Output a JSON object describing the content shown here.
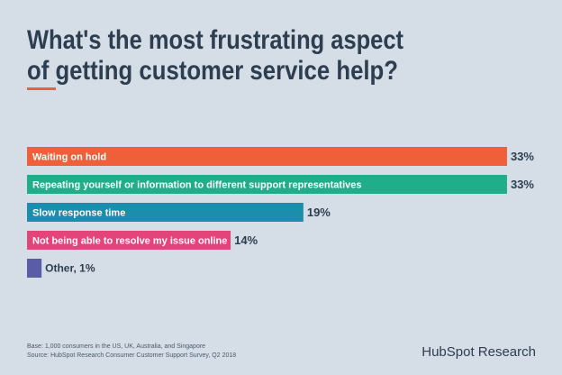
{
  "chart_data": {
    "type": "bar",
    "title_lines": [
      "What's the most frustrating aspect",
      "of getting customer service help?"
    ],
    "categories": [
      "Waiting on hold",
      "Repeating yourself or information to different support representatives",
      "Slow response time",
      "Not being able to resolve my issue online",
      "Other, 1%"
    ],
    "values": [
      33,
      33,
      19,
      14,
      1
    ],
    "value_labels": [
      "33%",
      "33%",
      "19%",
      "14%",
      null
    ],
    "colors": [
      "#ef5f3a",
      "#20ad8a",
      "#1b8eae",
      "#e3457a",
      "#5a5ca8"
    ],
    "notes": [
      "Base: 1,000 consumers in the US, UK, Australia, and Singapore",
      "Source: HubSpot Research Consumer Customer Support Survey, Q2 2018"
    ],
    "brand": "HubSpot Research"
  }
}
